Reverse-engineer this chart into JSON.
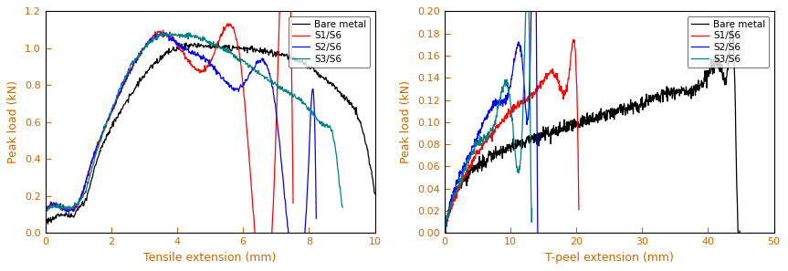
{
  "left": {
    "xlabel": "Tensile extension (mm)",
    "ylabel": "Peak load (kN)",
    "xlim": [
      0,
      10
    ],
    "ylim": [
      0.0,
      1.2
    ],
    "yticks": [
      0.0,
      0.2,
      0.4,
      0.6,
      0.8,
      1.0,
      1.2
    ],
    "xticks": [
      0,
      2,
      4,
      6,
      8,
      10
    ],
    "legend_labels": [
      "Bare metal",
      "S1/S6",
      "S2/S6",
      "S3/S6"
    ],
    "colors": [
      "#000000",
      "#ff0000",
      "#0000ff",
      "#008080"
    ]
  },
  "right": {
    "xlabel": "T-peel extension (mm)",
    "ylabel": "Peak load (kN)",
    "xlim": [
      0,
      50
    ],
    "ylim": [
      0.0,
      0.2
    ],
    "yticks": [
      0.0,
      0.02,
      0.04,
      0.06,
      0.08,
      0.1,
      0.12,
      0.14,
      0.16,
      0.18,
      0.2
    ],
    "xticks": [
      0,
      10,
      20,
      30,
      40,
      50
    ],
    "legend_labels": [
      "Bare metal",
      "S1/S6",
      "S2/S6",
      "S3/S6"
    ],
    "colors": [
      "#000000",
      "#ff0000",
      "#0000ff",
      "#008080"
    ]
  },
  "label_color": "#cc6600",
  "tick_color": "#cc6600"
}
